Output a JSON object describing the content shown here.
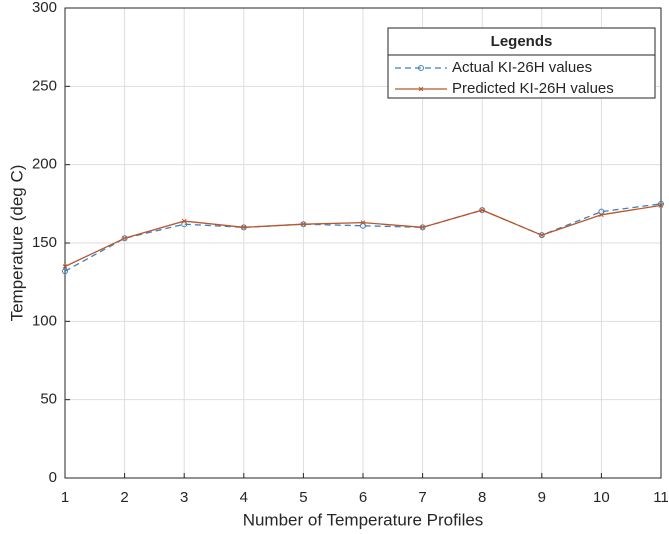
{
  "chart_data": {
    "type": "line",
    "xlabel": "Number of Temperature Profiles",
    "ylabel": "Temperature (deg C)",
    "x": [
      1,
      2,
      3,
      4,
      5,
      6,
      7,
      8,
      9,
      10,
      11
    ],
    "series": [
      {
        "name": "Actual KI-26H values",
        "color": "#3f7fbf",
        "linestyle": "dashed",
        "marker": "o",
        "values": [
          132,
          153,
          162,
          160,
          162,
          161,
          160,
          171,
          155,
          170,
          175
        ]
      },
      {
        "name": "Predicted KI-26H values",
        "color": "#b8582c",
        "linestyle": "solid",
        "marker": "x",
        "values": [
          135,
          153,
          164,
          160,
          162,
          163,
          160,
          171,
          155,
          168,
          174
        ]
      }
    ],
    "xlim": [
      1,
      11
    ],
    "xticks": [
      1,
      2,
      3,
      4,
      5,
      6,
      7,
      8,
      9,
      10,
      11
    ],
    "ylim": [
      0,
      300
    ],
    "yticks": [
      0,
      50,
      100,
      150,
      200,
      250,
      300
    ],
    "grid": true,
    "legend_title": "Legends",
    "legend_loc": "northeast"
  }
}
